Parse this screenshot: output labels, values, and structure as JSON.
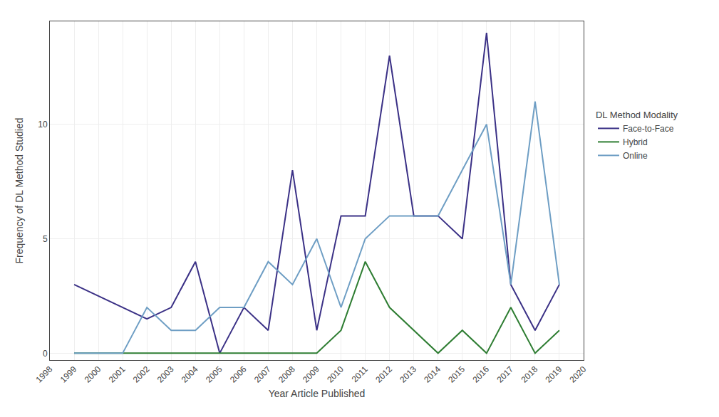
{
  "chart_data": {
    "type": "line",
    "xlabel": "Year Article Published",
    "ylabel": "Frequency of DL Method Studied",
    "legend_title": "DL Method Modality",
    "legend": "right",
    "grid": true,
    "x": [
      1999,
      2000,
      2001,
      2002,
      2003,
      2004,
      2005,
      2006,
      2007,
      2008,
      2009,
      2010,
      2011,
      2012,
      2013,
      2014,
      2015,
      2016,
      2017,
      2018,
      2019
    ],
    "xlim": [
      1998,
      2020
    ],
    "xticks": [
      1998,
      1999,
      2000,
      2001,
      2002,
      2003,
      2004,
      2005,
      2006,
      2007,
      2008,
      2009,
      2010,
      2011,
      2012,
      2013,
      2014,
      2015,
      2016,
      2017,
      2018,
      2019,
      2020
    ],
    "ylim": [
      -0.3,
      14.5
    ],
    "yticks": [
      0,
      5,
      10
    ],
    "series": [
      {
        "name": "Face-to-Face",
        "color": "#3b3186",
        "values": [
          3,
          2.5,
          2,
          1.5,
          2,
          4,
          0,
          2,
          1,
          8,
          1,
          6,
          6,
          13,
          6,
          6,
          5,
          14,
          3,
          1,
          3
        ]
      },
      {
        "name": "Hybrid",
        "color": "#2e7d32",
        "values": [
          0,
          0,
          0,
          0,
          0,
          0,
          0,
          0,
          0,
          0,
          0,
          1,
          4,
          2,
          1,
          0,
          1,
          0,
          2,
          0,
          1
        ]
      },
      {
        "name": "Online",
        "color": "#6e9ec4",
        "values": [
          0,
          0,
          0,
          2,
          1,
          1,
          2,
          2,
          4,
          3,
          5,
          2,
          5,
          6,
          6,
          6,
          8,
          10,
          3,
          11,
          3
        ]
      }
    ]
  }
}
